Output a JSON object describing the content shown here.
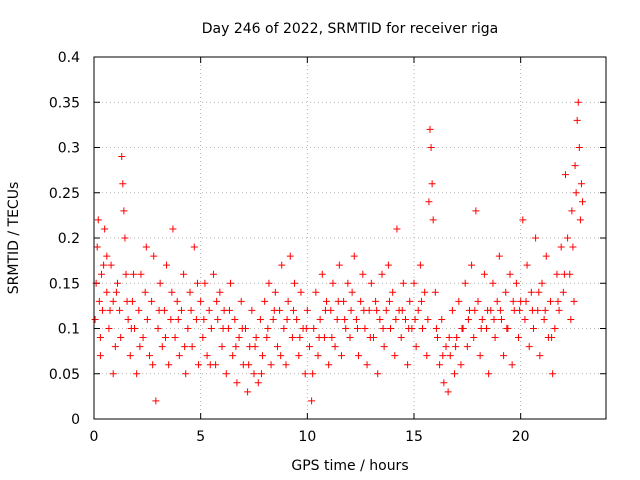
{
  "chart_data": {
    "type": "scatter",
    "title": "Day 246 of 2022, SRMTID for receiver riga",
    "xlabel": "GPS time / hours",
    "ylabel": "SRMTID / TECUs",
    "xlim": [
      0,
      24
    ],
    "ylim": [
      0,
      0.4
    ],
    "x_ticks": [
      0,
      5,
      10,
      15,
      20
    ],
    "x_tick_labels": [
      "0",
      "5",
      "10",
      "15",
      "20"
    ],
    "y_ticks": [
      0,
      0.05,
      0.1,
      0.15,
      0.2,
      0.25,
      0.3,
      0.35,
      0.4
    ],
    "y_tick_labels": [
      "0",
      "0.05",
      "0.1",
      "0.15",
      "0.2",
      "0.25",
      "0.3",
      "0.35",
      "0.4"
    ],
    "grid": true,
    "marker": "+",
    "series_color": "#ff0000",
    "series": [
      {
        "name": "SRMTID",
        "points": [
          [
            0.05,
            0.11
          ],
          [
            0.1,
            0.15
          ],
          [
            0.15,
            0.19
          ],
          [
            0.2,
            0.22
          ],
          [
            0.25,
            0.13
          ],
          [
            0.3,
            0.09
          ],
          [
            0.35,
            0.16
          ],
          [
            0.4,
            0.12
          ],
          [
            0.5,
            0.21
          ],
          [
            0.6,
            0.14
          ],
          [
            0.7,
            0.1
          ],
          [
            0.8,
            0.17
          ],
          [
            0.9,
            0.13
          ],
          [
            1.0,
            0.08
          ],
          [
            1.1,
            0.15
          ],
          [
            1.2,
            0.12
          ],
          [
            1.3,
            0.29
          ],
          [
            1.35,
            0.26
          ],
          [
            1.4,
            0.23
          ],
          [
            1.45,
            0.2
          ],
          [
            1.5,
            0.16
          ],
          [
            1.6,
            0.11
          ],
          [
            1.7,
            0.07
          ],
          [
            1.8,
            0.13
          ],
          [
            1.9,
            0.1
          ],
          [
            2.0,
            0.05
          ],
          [
            2.1,
            0.12
          ],
          [
            2.2,
            0.16
          ],
          [
            2.3,
            0.09
          ],
          [
            2.4,
            0.14
          ],
          [
            2.5,
            0.11
          ],
          [
            2.6,
            0.07
          ],
          [
            2.7,
            0.13
          ],
          [
            2.8,
            0.18
          ],
          [
            2.9,
            0.02
          ],
          [
            3.0,
            0.1
          ],
          [
            3.1,
            0.15
          ],
          [
            3.2,
            0.08
          ],
          [
            3.3,
            0.12
          ],
          [
            3.4,
            0.17
          ],
          [
            3.5,
            0.06
          ],
          [
            3.6,
            0.11
          ],
          [
            3.7,
            0.21
          ],
          [
            3.8,
            0.09
          ],
          [
            3.9,
            0.13
          ],
          [
            4.0,
            0.07
          ],
          [
            4.1,
            0.12
          ],
          [
            4.2,
            0.16
          ],
          [
            4.3,
            0.05
          ],
          [
            4.4,
            0.1
          ],
          [
            4.5,
            0.14
          ],
          [
            4.6,
            0.08
          ],
          [
            4.7,
            0.19
          ],
          [
            4.8,
            0.11
          ],
          [
            4.9,
            0.06
          ],
          [
            5.0,
            0.13
          ],
          [
            5.1,
            0.09
          ],
          [
            5.2,
            0.15
          ],
          [
            5.3,
            0.07
          ],
          [
            5.4,
            0.12
          ],
          [
            5.5,
            0.1
          ],
          [
            5.6,
            0.16
          ],
          [
            5.7,
            0.06
          ],
          [
            5.8,
            0.11
          ],
          [
            5.9,
            0.14
          ],
          [
            6.0,
            0.08
          ],
          [
            6.1,
            0.12
          ],
          [
            6.2,
            0.05
          ],
          [
            6.3,
            0.1
          ],
          [
            6.4,
            0.15
          ],
          [
            6.5,
            0.07
          ],
          [
            6.6,
            0.11
          ],
          [
            6.7,
            0.04
          ],
          [
            6.8,
            0.09
          ],
          [
            6.9,
            0.13
          ],
          [
            7.0,
            0.06
          ],
          [
            7.1,
            0.1
          ],
          [
            7.2,
            0.03
          ],
          [
            7.3,
            0.08
          ],
          [
            7.4,
            0.12
          ],
          [
            7.5,
            0.05
          ],
          [
            7.6,
            0.09
          ],
          [
            7.7,
            0.04
          ],
          [
            7.8,
            0.11
          ],
          [
            7.9,
            0.07
          ],
          [
            8.0,
            0.13
          ],
          [
            8.1,
            0.09
          ],
          [
            8.2,
            0.15
          ],
          [
            8.3,
            0.06
          ],
          [
            8.4,
            0.11
          ],
          [
            8.5,
            0.14
          ],
          [
            8.6,
            0.08
          ],
          [
            8.7,
            0.12
          ],
          [
            8.8,
            0.17
          ],
          [
            8.9,
            0.1
          ],
          [
            9.0,
            0.06
          ],
          [
            9.1,
            0.13
          ],
          [
            9.2,
            0.18
          ],
          [
            9.3,
            0.09
          ],
          [
            9.4,
            0.15
          ],
          [
            9.5,
            0.11
          ],
          [
            9.6,
            0.07
          ],
          [
            9.7,
            0.14
          ],
          [
            9.8,
            0.1
          ],
          [
            9.9,
            0.05
          ],
          [
            10.0,
            0.12
          ],
          [
            10.1,
            0.08
          ],
          [
            10.2,
            0.02
          ],
          [
            10.3,
            0.1
          ],
          [
            10.4,
            0.14
          ],
          [
            10.5,
            0.07
          ],
          [
            10.6,
            0.11
          ],
          [
            10.7,
            0.16
          ],
          [
            10.8,
            0.09
          ],
          [
            10.9,
            0.13
          ],
          [
            11.0,
            0.06
          ],
          [
            11.1,
            0.12
          ],
          [
            11.2,
            0.15
          ],
          [
            11.3,
            0.08
          ],
          [
            11.4,
            0.11
          ],
          [
            11.5,
            0.17
          ],
          [
            11.6,
            0.07
          ],
          [
            11.7,
            0.13
          ],
          [
            11.8,
            0.1
          ],
          [
            11.9,
            0.15
          ],
          [
            12.0,
            0.09
          ],
          [
            12.1,
            0.14
          ],
          [
            12.2,
            0.18
          ],
          [
            12.3,
            0.11
          ],
          [
            12.4,
            0.07
          ],
          [
            12.5,
            0.13
          ],
          [
            12.6,
            0.16
          ],
          [
            12.7,
            0.1
          ],
          [
            12.8,
            0.06
          ],
          [
            12.9,
            0.12
          ],
          [
            13.0,
            0.15
          ],
          [
            13.1,
            0.09
          ],
          [
            13.2,
            0.13
          ],
          [
            13.3,
            0.05
          ],
          [
            13.4,
            0.11
          ],
          [
            13.5,
            0.16
          ],
          [
            13.6,
            0.08
          ],
          [
            13.7,
            0.12
          ],
          [
            13.8,
            0.17
          ],
          [
            13.9,
            0.1
          ],
          [
            14.0,
            0.14
          ],
          [
            14.1,
            0.07
          ],
          [
            14.2,
            0.21
          ],
          [
            14.3,
            0.12
          ],
          [
            14.4,
            0.09
          ],
          [
            14.5,
            0.15
          ],
          [
            14.6,
            0.11
          ],
          [
            14.7,
            0.06
          ],
          [
            14.8,
            0.13
          ],
          [
            14.9,
            0.1
          ],
          [
            15.0,
            0.15
          ],
          [
            15.1,
            0.08
          ],
          [
            15.2,
            0.12
          ],
          [
            15.3,
            0.17
          ],
          [
            15.4,
            0.1
          ],
          [
            15.5,
            0.14
          ],
          [
            15.6,
            0.07
          ],
          [
            15.7,
            0.24
          ],
          [
            15.75,
            0.32
          ],
          [
            15.8,
            0.3
          ],
          [
            15.85,
            0.26
          ],
          [
            15.9,
            0.22
          ],
          [
            16.0,
            0.14
          ],
          [
            16.1,
            0.09
          ],
          [
            16.2,
            0.06
          ],
          [
            16.3,
            0.11
          ],
          [
            16.4,
            0.04
          ],
          [
            16.5,
            0.08
          ],
          [
            16.6,
            0.03
          ],
          [
            16.7,
            0.07
          ],
          [
            16.8,
            0.12
          ],
          [
            16.9,
            0.05
          ],
          [
            17.0,
            0.09
          ],
          [
            17.1,
            0.13
          ],
          [
            17.2,
            0.06
          ],
          [
            17.3,
            0.1
          ],
          [
            17.4,
            0.15
          ],
          [
            17.5,
            0.08
          ],
          [
            17.6,
            0.12
          ],
          [
            17.7,
            0.17
          ],
          [
            17.8,
            0.09
          ],
          [
            17.9,
            0.23
          ],
          [
            18.0,
            0.13
          ],
          [
            18.1,
            0.07
          ],
          [
            18.2,
            0.11
          ],
          [
            18.3,
            0.16
          ],
          [
            18.4,
            0.1
          ],
          [
            18.5,
            0.05
          ],
          [
            18.6,
            0.12
          ],
          [
            18.7,
            0.15
          ],
          [
            18.8,
            0.09
          ],
          [
            18.9,
            0.13
          ],
          [
            19.0,
            0.18
          ],
          [
            19.1,
            0.11
          ],
          [
            19.2,
            0.07
          ],
          [
            19.3,
            0.14
          ],
          [
            19.4,
            0.1
          ],
          [
            19.5,
            0.16
          ],
          [
            19.6,
            0.06
          ],
          [
            19.7,
            0.12
          ],
          [
            19.8,
            0.15
          ],
          [
            19.9,
            0.09
          ],
          [
            20.0,
            0.13
          ],
          [
            20.1,
            0.22
          ],
          [
            20.2,
            0.11
          ],
          [
            20.3,
            0.17
          ],
          [
            20.4,
            0.08
          ],
          [
            20.5,
            0.14
          ],
          [
            20.6,
            0.1
          ],
          [
            20.7,
            0.2
          ],
          [
            20.8,
            0.12
          ],
          [
            20.9,
            0.07
          ],
          [
            21.0,
            0.15
          ],
          [
            21.1,
            0.11
          ],
          [
            21.2,
            0.18
          ],
          [
            21.3,
            0.09
          ],
          [
            21.4,
            0.13
          ],
          [
            21.5,
            0.05
          ],
          [
            21.6,
            0.1
          ],
          [
            21.7,
            0.16
          ],
          [
            21.8,
            0.12
          ],
          [
            21.9,
            0.19
          ],
          [
            22.0,
            0.14
          ],
          [
            22.1,
            0.27
          ],
          [
            22.2,
            0.2
          ],
          [
            22.3,
            0.16
          ],
          [
            22.4,
            0.23
          ],
          [
            22.5,
            0.13
          ],
          [
            22.55,
            0.28
          ],
          [
            22.6,
            0.25
          ],
          [
            22.65,
            0.33
          ],
          [
            22.7,
            0.35
          ],
          [
            22.75,
            0.3
          ],
          [
            22.8,
            0.22
          ],
          [
            22.85,
            0.26
          ],
          [
            0.3,
            0.07
          ],
          [
            0.6,
            0.18
          ],
          [
            0.9,
            0.05
          ],
          [
            1.25,
            0.09
          ],
          [
            1.55,
            0.13
          ],
          [
            1.85,
            0.16
          ],
          [
            2.15,
            0.08
          ],
          [
            2.45,
            0.19
          ],
          [
            2.75,
            0.06
          ],
          [
            3.05,
            0.12
          ],
          [
            3.35,
            0.09
          ],
          [
            3.65,
            0.14
          ],
          [
            3.95,
            0.11
          ],
          [
            4.25,
            0.08
          ],
          [
            4.55,
            0.12
          ],
          [
            4.85,
            0.15
          ],
          [
            5.15,
            0.11
          ],
          [
            5.45,
            0.06
          ],
          [
            5.75,
            0.13
          ],
          [
            6.05,
            0.1
          ],
          [
            6.35,
            0.12
          ],
          [
            6.65,
            0.08
          ],
          [
            6.95,
            0.1
          ],
          [
            7.25,
            0.06
          ],
          [
            7.55,
            0.08
          ],
          [
            7.85,
            0.05
          ],
          [
            8.15,
            0.1
          ],
          [
            8.45,
            0.12
          ],
          [
            8.75,
            0.07
          ],
          [
            9.05,
            0.11
          ],
          [
            9.35,
            0.12
          ],
          [
            9.65,
            0.09
          ],
          [
            9.95,
            0.1
          ],
          [
            10.25,
            0.05
          ],
          [
            10.55,
            0.09
          ],
          [
            10.85,
            0.12
          ],
          [
            11.15,
            0.09
          ],
          [
            11.45,
            0.13
          ],
          [
            11.75,
            0.11
          ],
          [
            12.05,
            0.12
          ],
          [
            12.35,
            0.1
          ],
          [
            12.65,
            0.12
          ],
          [
            12.95,
            0.09
          ],
          [
            13.25,
            0.12
          ],
          [
            13.55,
            0.1
          ],
          [
            13.85,
            0.13
          ],
          [
            14.15,
            0.11
          ],
          [
            14.45,
            0.12
          ],
          [
            14.75,
            0.1
          ],
          [
            15.05,
            0.11
          ],
          [
            15.35,
            0.13
          ],
          [
            15.65,
            0.11
          ],
          [
            16.05,
            0.1
          ],
          [
            16.35,
            0.07
          ],
          [
            16.65,
            0.09
          ],
          [
            16.95,
            0.08
          ],
          [
            17.25,
            0.1
          ],
          [
            17.55,
            0.11
          ],
          [
            17.85,
            0.12
          ],
          [
            18.15,
            0.1
          ],
          [
            18.45,
            0.12
          ],
          [
            18.75,
            0.11
          ],
          [
            19.05,
            0.12
          ],
          [
            19.35,
            0.1
          ],
          [
            19.65,
            0.13
          ],
          [
            19.95,
            0.12
          ],
          [
            20.25,
            0.13
          ],
          [
            20.55,
            0.12
          ],
          [
            20.85,
            0.14
          ],
          [
            21.15,
            0.12
          ],
          [
            21.45,
            0.09
          ],
          [
            21.75,
            0.13
          ],
          [
            22.05,
            0.16
          ],
          [
            22.35,
            0.11
          ],
          [
            22.45,
            0.19
          ],
          [
            22.9,
            0.24
          ],
          [
            0.45,
            0.17
          ],
          [
            0.75,
            0.12
          ],
          [
            1.05,
            0.14
          ],
          [
            1.75,
            0.1
          ]
        ]
      }
    ]
  }
}
